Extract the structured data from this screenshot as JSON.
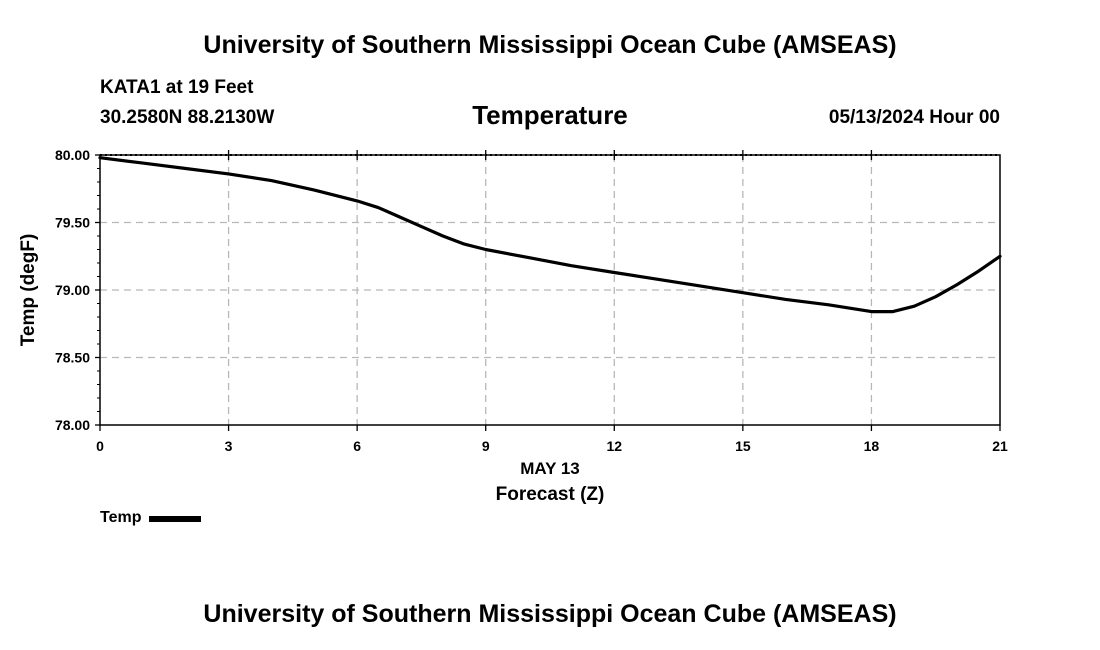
{
  "header": {
    "title": "University of Southern Mississippi Ocean Cube (AMSEAS)",
    "station": "KATA1 at 19 Feet",
    "coords": "30.2580N  88.2130W",
    "datetime": "05/13/2024 Hour 00"
  },
  "footer": {
    "title": "University of Southern Mississippi Ocean Cube (AMSEAS)"
  },
  "legend": {
    "label": "Temp",
    "color": "#000000"
  },
  "chart_data": {
    "type": "line",
    "title": "Temperature",
    "xlabel": "Forecast (Z)",
    "xsublabel": "MAY 13",
    "ylabel": "Temp (degF)",
    "xlim": [
      0,
      21
    ],
    "ylim": [
      78.0,
      80.0
    ],
    "xticks": [
      0,
      3,
      6,
      9,
      12,
      15,
      18,
      21
    ],
    "xtick_labels": [
      "0",
      "3",
      "6",
      "9",
      "12",
      "15",
      "18",
      "21"
    ],
    "yticks": [
      78.0,
      78.5,
      79.0,
      79.5,
      80.0
    ],
    "ytick_labels": [
      "78.00",
      "78.50",
      "79.00",
      "79.50",
      "80.00"
    ],
    "grid": true,
    "series": [
      {
        "name": "Temp",
        "color": "#000000",
        "x": [
          0,
          1,
          2,
          3,
          4,
          5,
          6,
          6.5,
          7,
          7.5,
          8,
          8.5,
          9,
          10,
          11,
          12,
          13,
          14,
          15,
          16,
          17,
          18,
          18.5,
          19,
          19.5,
          20,
          20.5,
          21
        ],
        "y": [
          79.98,
          79.94,
          79.9,
          79.86,
          79.81,
          79.74,
          79.66,
          79.61,
          79.54,
          79.47,
          79.4,
          79.34,
          79.3,
          79.24,
          79.18,
          79.13,
          79.08,
          79.03,
          78.98,
          78.93,
          78.89,
          78.84,
          78.84,
          78.88,
          78.95,
          79.04,
          79.14,
          79.25
        ]
      }
    ]
  }
}
